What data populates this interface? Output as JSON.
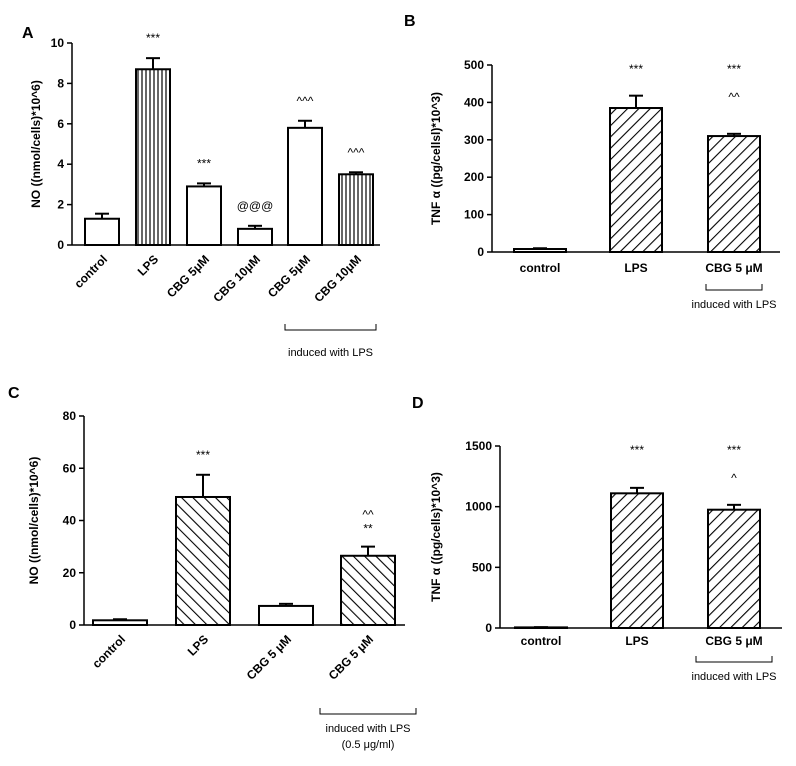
{
  "chart_data": [
    {
      "panel": "A",
      "type": "bar",
      "ylabel": "NO ((nmol/cells)*10^6)",
      "ylim": [
        0,
        10
      ],
      "yticks": [
        0,
        2,
        4,
        6,
        8,
        10
      ],
      "categories": [
        "control",
        "LPS",
        "CBG 5μM",
        "CBG 10μM",
        "CBG 5μM",
        "CBG 10μM"
      ],
      "values": [
        1.3,
        8.7,
        2.9,
        0.8,
        5.8,
        3.5
      ],
      "errors": [
        0.25,
        0.55,
        0.15,
        0.15,
        0.35,
        0.1
      ],
      "fills": [
        "blank",
        "vertical",
        "blank",
        "blank",
        "blank",
        "vertical"
      ],
      "significance": [
        "",
        "***",
        "***",
        "@@@",
        "^^^",
        "^^^"
      ],
      "bracket": {
        "text": "induced with LPS",
        "from": 4,
        "to": 5
      }
    },
    {
      "panel": "B",
      "type": "bar",
      "ylabel": "TNF α ((pg/cellsl)*10^3)",
      "ylim": [
        0,
        500
      ],
      "yticks": [
        0,
        100,
        200,
        300,
        400,
        500
      ],
      "categories": [
        "control",
        "LPS",
        "CBG 5 μM"
      ],
      "values": [
        8,
        385,
        310
      ],
      "errors": [
        2,
        33,
        6
      ],
      "fills": [
        "blank",
        "diag",
        "diag"
      ],
      "significance": [
        [],
        [
          "***"
        ],
        [
          "***",
          "^^"
        ]
      ],
      "bracket": {
        "text": "induced with LPS",
        "from": 2,
        "to": 2
      }
    },
    {
      "panel": "C",
      "type": "bar",
      "ylabel": "NO ((nmol/cells)*10^6)",
      "ylim": [
        0,
        80
      ],
      "yticks": [
        0,
        20,
        40,
        60,
        80
      ],
      "categories": [
        "control",
        "LPS",
        "CBG 5 μM",
        "CBG 5 μM"
      ],
      "values": [
        1.8,
        49,
        7.3,
        26.5
      ],
      "errors": [
        0.4,
        8.5,
        0.8,
        3.5
      ],
      "fills": [
        "blank",
        "diag-back",
        "blank",
        "diag-back"
      ],
      "significance": [
        [],
        [
          "***"
        ],
        [],
        [
          "^^",
          "**"
        ]
      ],
      "bracket": {
        "text": "induced with LPS",
        "text2": "(0.5 μg/ml)",
        "from": 3,
        "to": 3
      }
    },
    {
      "panel": "D",
      "type": "bar",
      "ylabel": "TNF α ((pg/cells)*10^3)",
      "ylim": [
        0,
        1500
      ],
      "yticks": [
        0,
        500,
        1000,
        1500
      ],
      "categories": [
        "control",
        "LPS",
        "CBG 5 μM"
      ],
      "values": [
        5,
        1110,
        975
      ],
      "errors": [
        2,
        45,
        40
      ],
      "fills": [
        "blank",
        "diag",
        "diag"
      ],
      "significance": [
        [],
        [
          "***"
        ],
        [
          "***",
          "^"
        ]
      ],
      "bracket": {
        "text": "induced with LPS",
        "from": 2,
        "to": 2
      }
    }
  ]
}
